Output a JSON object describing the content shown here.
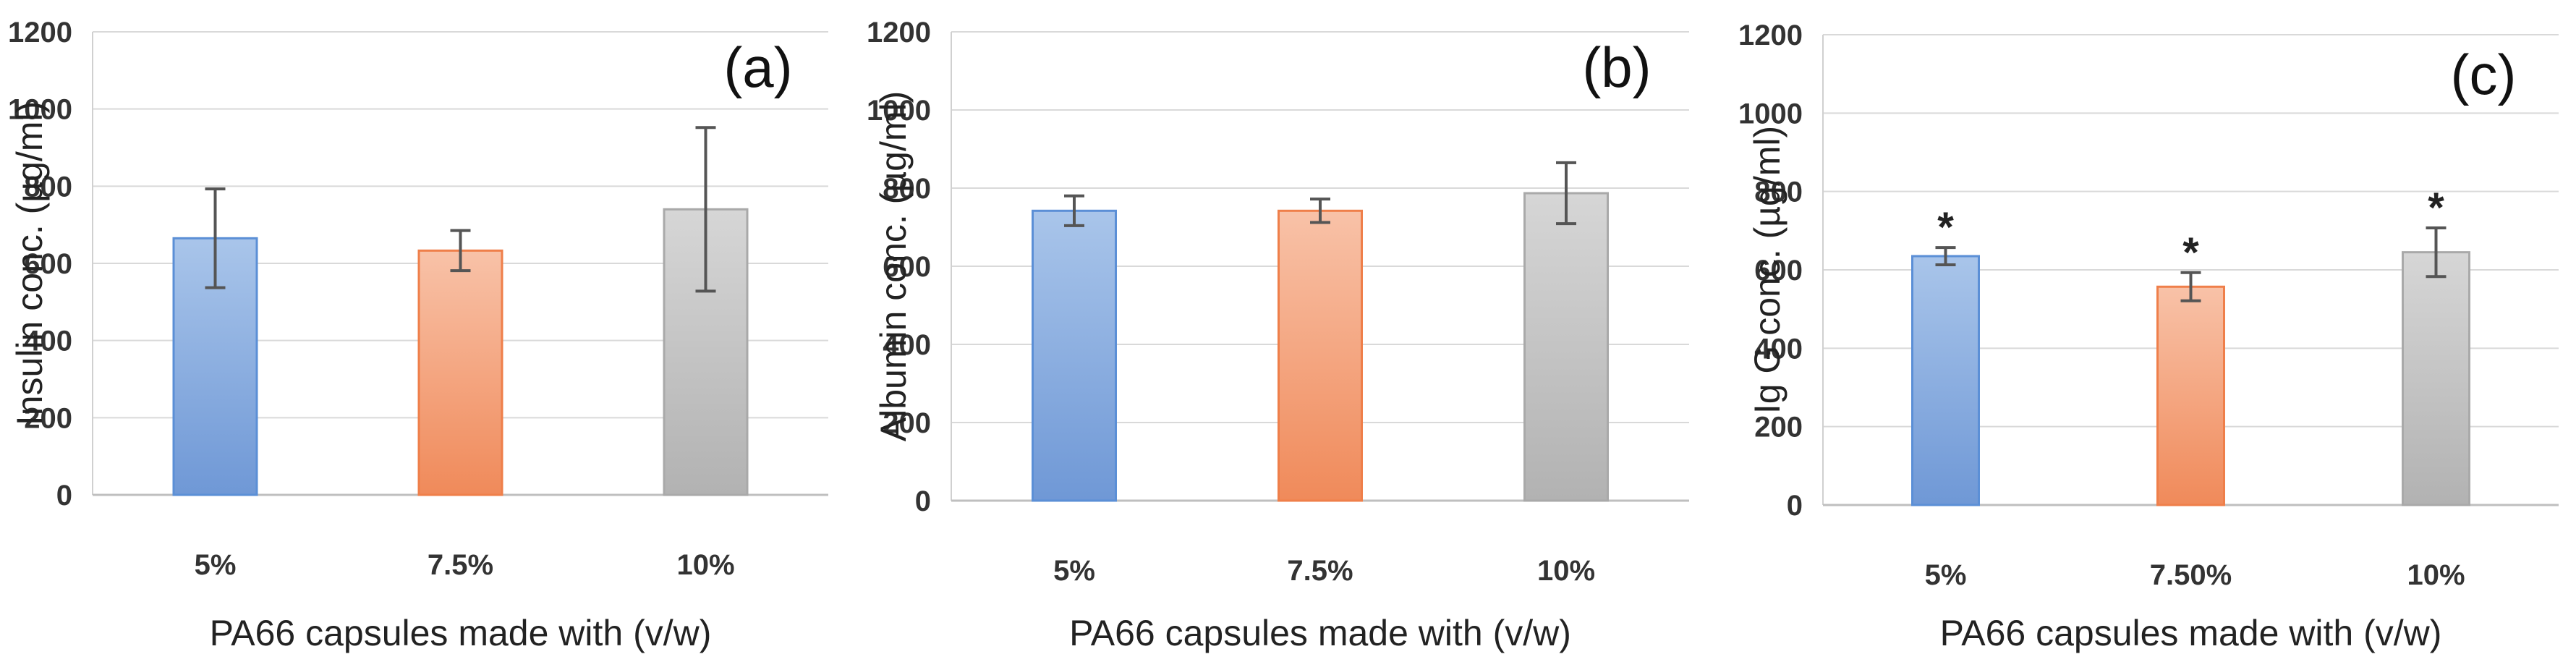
{
  "chart_data": [
    {
      "type": "bar",
      "panel_label": "(a)",
      "title": "",
      "xlabel": "PA66 capsules made with (v/w)",
      "ylabel": "Insulin conc. (µg/ml)",
      "ylim": [
        0,
        1200
      ],
      "yticks": [
        "0",
        "200",
        "400",
        "600",
        "800",
        "1000",
        "1200"
      ],
      "grid": true,
      "categories": [
        "5%",
        "7.5%",
        "10%"
      ],
      "values": [
        665,
        633,
        740
      ],
      "errors": [
        128,
        52,
        212
      ],
      "significance": [
        "",
        "",
        ""
      ],
      "colors": [
        "#8fb2e0",
        "#f3a37f",
        "#c0c0c0"
      ]
    },
    {
      "type": "bar",
      "panel_label": "(b)",
      "title": "",
      "xlabel": "PA66 capsules made with (v/w)",
      "ylabel": "Albumin conc. (µg/ml)",
      "ylim": [
        0,
        1200
      ],
      "yticks": [
        "0",
        "200",
        "400",
        "600",
        "800",
        "1000",
        "1200"
      ],
      "grid": true,
      "categories": [
        "5%",
        "7.5%",
        "10%"
      ],
      "values": [
        742,
        742,
        787
      ],
      "errors": [
        38,
        30,
        78
      ],
      "significance": [
        "",
        "",
        ""
      ],
      "colors": [
        "#8fb2e0",
        "#f3a37f",
        "#c0c0c0"
      ]
    },
    {
      "type": "bar",
      "panel_label": "(c)",
      "title": "",
      "xlabel": "PA66 capsules made with (v/w)",
      "ylabel": "Ig G conc. (µg/ml)",
      "ylim": [
        0,
        1200
      ],
      "yticks": [
        "0",
        "200",
        "400",
        "600",
        "800",
        "1000",
        "1200"
      ],
      "grid": true,
      "categories": [
        "5%",
        "7.50%",
        "10%"
      ],
      "values": [
        635,
        557,
        645
      ],
      "errors": [
        22,
        36,
        62
      ],
      "significance": [
        "*",
        "*",
        "*"
      ],
      "colors": [
        "#8fb2e0",
        "#f3a37f",
        "#c0c0c0"
      ]
    }
  ]
}
